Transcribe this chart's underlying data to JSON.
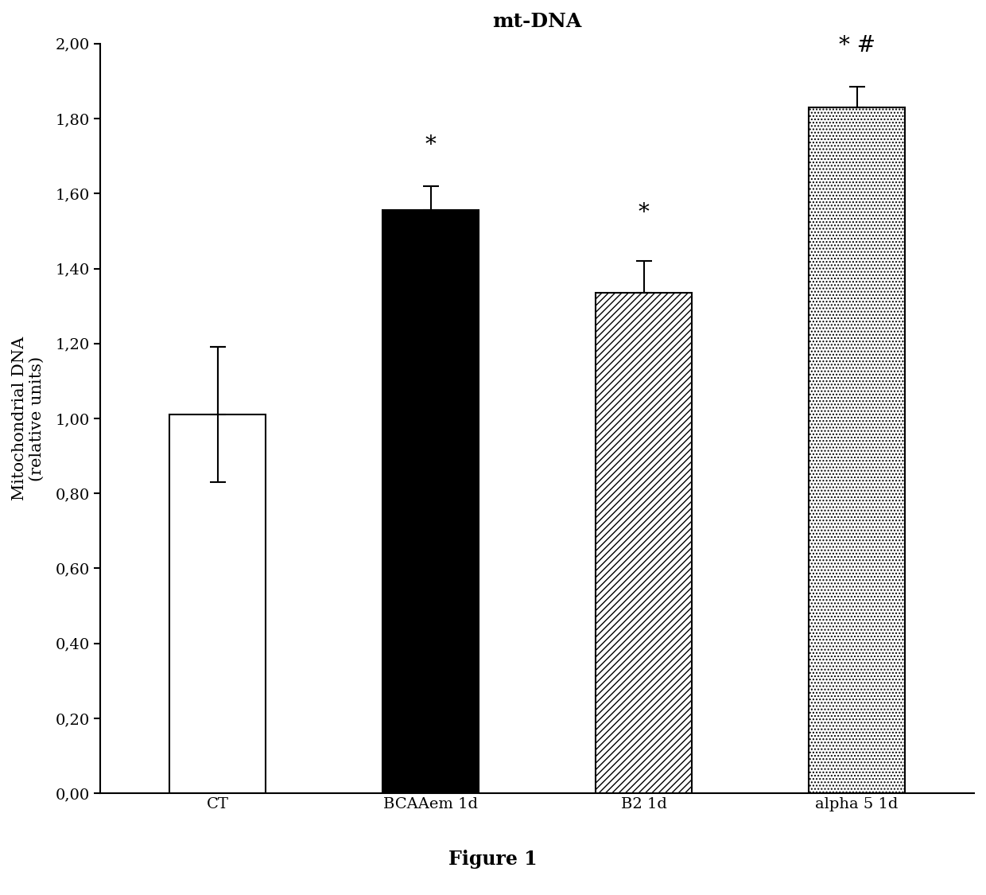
{
  "title": "mt-DNA",
  "ylabel_line1": "Mitochondrial DNA",
  "ylabel_line2": "(relative units)",
  "figure_label": "Figure 1",
  "categories": [
    "CT",
    "BCAAem 1d",
    "B2 1d",
    "alpha 5 1d"
  ],
  "values": [
    1.01,
    1.555,
    1.335,
    1.83
  ],
  "errors": [
    0.18,
    0.065,
    0.085,
    0.055
  ],
  "ylim": [
    0,
    2.0
  ],
  "yticks": [
    0.0,
    0.2,
    0.4,
    0.6,
    0.8,
    1.0,
    1.2,
    1.4,
    1.6,
    1.8,
    2.0
  ],
  "ytick_labels": [
    "0,00",
    "0,20",
    "0,40",
    "0,60",
    "0,80",
    "1,00",
    "1,20",
    "1,40",
    "1,60",
    "1,80",
    "2,00"
  ],
  "bar_patterns": [
    "",
    "",
    "////",
    "...."
  ],
  "bar_facecolors": [
    "white",
    "black",
    "white",
    "white"
  ],
  "bar_edgecolors": [
    "black",
    "black",
    "black",
    "black"
  ],
  "annotation_texts": [
    "",
    "*",
    "*",
    "* #"
  ],
  "annotation_offsets": [
    0.0,
    0.08,
    0.1,
    0.08
  ],
  "title_fontsize": 18,
  "axis_label_fontsize": 15,
  "tick_fontsize": 14,
  "annotation_fontsize": 20,
  "figure_label_fontsize": 17,
  "bar_width": 0.45,
  "x_positions": [
    0,
    1,
    2,
    3
  ],
  "xlim": [
    -0.55,
    3.55
  ]
}
